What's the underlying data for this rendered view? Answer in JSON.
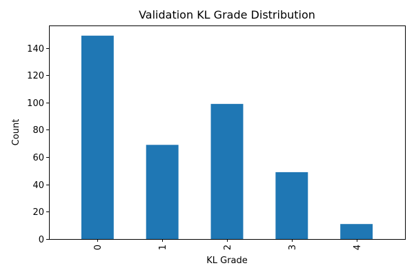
{
  "chart_data": {
    "type": "bar",
    "title": "Validation KL Grade Distribution",
    "xlabel": "KL Grade",
    "ylabel": "Count",
    "categories": [
      "0",
      "1",
      "2",
      "3",
      "4"
    ],
    "values": [
      149,
      69,
      99,
      49,
      11
    ],
    "ylim": [
      0,
      156.45
    ],
    "yticks": [
      0,
      20,
      40,
      60,
      80,
      100,
      120,
      140
    ],
    "bar_color": "#1f77b4",
    "grid": false,
    "legend": "none",
    "x_tick_rotation": "vertical"
  }
}
